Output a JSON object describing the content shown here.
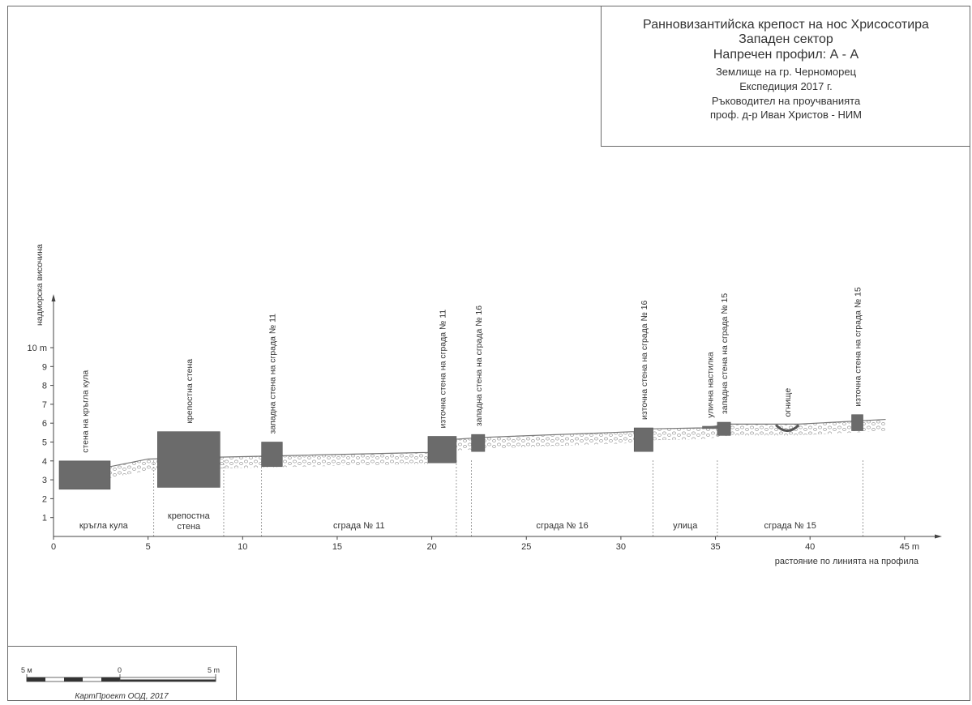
{
  "title_block": {
    "line1": "Ранновизантийска крепост на нос Хрисосотира",
    "line2": "Западен сектор",
    "line3": "Напречен профил:  А - А",
    "line4": "Землище на гр. Черноморец",
    "line5": "Експедиция 2017 г.",
    "line6": "Ръководител на проучванията",
    "line7": "проф. д-р Иван Христов - НИМ"
  },
  "axes": {
    "y_label": "надморска височина",
    "x_label": "растояние по линията на профила",
    "y_ticks": [
      "1",
      "2",
      "3",
      "4",
      "5",
      "6",
      "7",
      "8",
      "9",
      "10 m"
    ],
    "x_ticks": [
      "0",
      "5",
      "10",
      "15",
      "20",
      "25",
      "30",
      "35",
      "40",
      "45 m"
    ]
  },
  "walls": [
    {
      "label": "стена на кръгла кула",
      "x_from": 0.3,
      "x_to": 3.0,
      "y_from": 2.5,
      "y_to": 4.0
    },
    {
      "label": "крепостна стена",
      "x_from": 5.5,
      "x_to": 8.8,
      "y_from": 2.6,
      "y_to": 5.55
    },
    {
      "label": "западна стена на сграда № 11",
      "x_from": 11.0,
      "x_to": 12.1,
      "y_from": 3.7,
      "y_to": 5.0
    },
    {
      "label": "източна стена на сграда № 11",
      "x_from": 19.8,
      "x_to": 21.3,
      "y_from": 3.9,
      "y_to": 5.3
    },
    {
      "label": "западна стена на сграда № 16",
      "x_from": 22.1,
      "x_to": 22.8,
      "y_from": 4.5,
      "y_to": 5.4
    },
    {
      "label": "източна стена на сграда № 16",
      "x_from": 30.7,
      "x_to": 31.7,
      "y_from": 4.5,
      "y_to": 5.75
    },
    {
      "label": "западна стена на сграда № 15",
      "x_from": 35.1,
      "x_to": 35.8,
      "y_from": 5.35,
      "y_to": 6.05
    },
    {
      "label": "източна стена на сграда № 15",
      "x_from": 42.2,
      "x_to": 42.8,
      "y_from": 5.6,
      "y_to": 6.45
    }
  ],
  "features": [
    {
      "label": "улична настилка",
      "x_from": 34.3,
      "x_to": 35.1,
      "y_from": 5.7,
      "y_to": 5.85
    },
    {
      "label": "огнище",
      "x": 38.8,
      "y": 5.9
    }
  ],
  "zones": [
    {
      "label": "кръгла кула",
      "x_from": 0,
      "x_to": 5.3
    },
    {
      "label": "крепостна стена",
      "x_from": 5.3,
      "x_to": 9.0
    },
    {
      "label": "сграда № 11",
      "x_from": 11.0,
      "x_to": 21.3
    },
    {
      "label": "сграда № 16",
      "x_from": 22.1,
      "x_to": 31.7
    },
    {
      "label": "улица",
      "x_from": 31.7,
      "x_to": 35.1
    },
    {
      "label": "сграда № 15",
      "x_from": 35.1,
      "x_to": 42.8
    }
  ],
  "dividers": [
    5.3,
    9.0,
    11.0,
    21.3,
    22.1,
    31.7,
    35.1,
    42.8
  ],
  "surface": [
    [
      3.0,
      3.7
    ],
    [
      5.0,
      4.1
    ],
    [
      8.8,
      4.2
    ],
    [
      11.0,
      4.25
    ],
    [
      19.8,
      4.45
    ],
    [
      21.3,
      5.15
    ],
    [
      22.8,
      5.25
    ],
    [
      30.7,
      5.55
    ],
    [
      31.7,
      5.7
    ],
    [
      34.3,
      5.75
    ],
    [
      35.8,
      5.95
    ],
    [
      38.2,
      5.95
    ],
    [
      39.4,
      5.95
    ],
    [
      42.2,
      6.1
    ],
    [
      44.0,
      6.2
    ]
  ],
  "scale_bar": {
    "left_label": "5 м",
    "mid_label": "0",
    "right_label": "5 m",
    "credit": "КартПроект ООД, 2017"
  }
}
